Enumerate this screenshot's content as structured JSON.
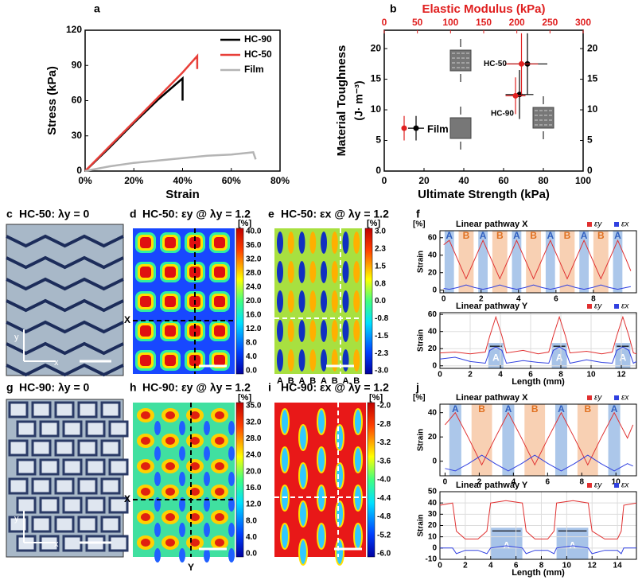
{
  "chart_data": [
    {
      "panel_label": "a",
      "type": "line",
      "xlabel": "Strain",
      "ylabel": "Stress (kPa)",
      "xlim": [
        0,
        80
      ],
      "xticks": [
        {
          "value": 0,
          "label": "0%"
        },
        {
          "value": 20,
          "label": "20%"
        },
        {
          "value": 40,
          "label": "40%"
        },
        {
          "value": 60,
          "label": "60%"
        },
        {
          "value": 80,
          "label": "80%"
        }
      ],
      "ylim": [
        0,
        120
      ],
      "yticks": [
        0,
        30,
        60,
        90,
        120
      ],
      "legend": "upper right",
      "series": [
        {
          "name": "HC-90",
          "color": "#000000",
          "x": [
            0,
            10,
            20,
            30,
            40,
            40
          ],
          "values": [
            0,
            20,
            41,
            61,
            79,
            60
          ]
        },
        {
          "name": "HC-50",
          "color": "#e8403a",
          "x": [
            0,
            10,
            20,
            30,
            40,
            46,
            46
          ],
          "values": [
            0,
            21,
            42,
            63,
            84,
            98,
            87
          ]
        },
        {
          "name": "Film",
          "color": "#b4b4b4",
          "x": [
            0,
            10,
            20,
            30,
            40,
            50,
            60,
            69,
            70
          ],
          "values": [
            0,
            4,
            7,
            9,
            11,
            13,
            14,
            16,
            10
          ]
        }
      ]
    },
    {
      "panel_label": "b",
      "type": "scatter",
      "xlabel": "Ultimate Strength (kPa)",
      "x2label": "Elastic Modulus (kPa)",
      "ylabel": "Material Toughness",
      "ylabel_unit": "(J· m⁻³)",
      "xlim": [
        0,
        100
      ],
      "xticks": [
        0,
        20,
        40,
        60,
        80,
        100
      ],
      "x2lim": [
        0,
        300
      ],
      "x2ticks": [
        0,
        50,
        100,
        150,
        200,
        250,
        300
      ],
      "ylim": [
        0,
        23
      ],
      "yticks": [
        0,
        5,
        10,
        15,
        20
      ],
      "y2lim": [
        0,
        23
      ],
      "y2ticks": [
        0,
        5,
        10,
        15,
        20
      ],
      "annotations": [
        "Film",
        "HC-90",
        "HC-50"
      ],
      "series": [
        {
          "color": "#000000",
          "x": [
            16,
            68,
            72
          ],
          "values": [
            7,
            12.5,
            17.5
          ],
          "xerr": [
            4,
            7,
            10
          ],
          "yerr": [
            2,
            4,
            5
          ]
        },
        {
          "color": "#e02020",
          "axis": "x2",
          "x": [
            30,
            198,
            207
          ],
          "values": [
            7,
            12.3,
            17.5
          ],
          "xerr": [
            0,
            15,
            25
          ],
          "yerr": [
            2,
            3,
            5
          ]
        }
      ]
    },
    {
      "panel_label": "f",
      "type": "line",
      "title": "Linear pathway X",
      "unit": "[%]",
      "ylabel": "Strain",
      "xlim": [
        -0.2,
        10.3
      ],
      "xticks": [
        0,
        2,
        4,
        6,
        8
      ],
      "ylim": [
        -3,
        68
      ],
      "yticks": [
        0,
        20,
        40,
        60
      ],
      "legend": "above",
      "x": [
        0,
        0.3,
        0.75,
        1.2,
        1.65,
        2.1,
        2.55,
        3.0,
        3.45,
        3.9,
        4.35,
        4.8,
        5.25,
        5.7,
        6.15,
        6.6,
        7.05,
        7.5,
        7.95,
        8.4,
        8.85,
        9.3,
        9.75,
        10
      ],
      "series": [
        {
          "name": "εy",
          "color": "#e03030",
          "values": [
            52,
            57,
            35,
            13,
            35,
            57,
            35,
            13,
            35,
            57,
            35,
            13,
            35,
            57,
            35,
            13,
            35,
            57,
            35,
            13,
            35,
            57,
            35,
            22
          ]
        },
        {
          "name": "εx",
          "color": "#3040e0",
          "values": [
            2,
            1,
            3,
            6,
            3,
            1,
            3,
            6,
            3,
            1,
            3,
            6,
            3,
            1,
            3,
            6,
            3,
            1,
            3,
            6,
            3,
            1,
            3,
            4
          ]
        }
      ],
      "bands": [
        {
          "label": "A",
          "x": [
            0.05,
            0.55
          ]
        },
        {
          "label": "B",
          "x": [
            0.8,
            1.6
          ]
        },
        {
          "label": "A",
          "x": [
            1.85,
            2.35
          ]
        },
        {
          "label": "B",
          "x": [
            2.6,
            3.4
          ]
        },
        {
          "label": "A",
          "x": [
            3.65,
            4.15
          ]
        },
        {
          "label": "B",
          "x": [
            4.4,
            5.2
          ]
        },
        {
          "label": "A",
          "x": [
            5.45,
            5.95
          ]
        },
        {
          "label": "B",
          "x": [
            6.2,
            7.0
          ]
        },
        {
          "label": "A",
          "x": [
            7.25,
            7.75
          ]
        },
        {
          "label": "B",
          "x": [
            8.0,
            8.8
          ]
        },
        {
          "label": "A",
          "x": [
            9.05,
            9.55
          ]
        }
      ]
    },
    {
      "type": "line",
      "title": "Linear pathway Y",
      "ylabel": "Strain",
      "xlabel": "Length (mm)",
      "grid": true,
      "xlim": [
        0,
        13
      ],
      "xticks": [
        0,
        2,
        4,
        6,
        8,
        10,
        12
      ],
      "ylim": [
        -3,
        62
      ],
      "yticks": [
        0,
        20,
        40,
        60
      ],
      "legend": "above",
      "x": [
        0,
        1,
        2,
        3,
        3.3,
        3.7,
        4.1,
        4.4,
        5.5,
        6.5,
        7.2,
        7.5,
        7.9,
        8.3,
        8.6,
        9.7,
        10.7,
        11.4,
        11.7,
        12.1,
        12.5,
        12.8,
        13
      ],
      "series": [
        {
          "name": "εy",
          "color": "#e03030",
          "values": [
            15,
            16,
            14,
            16,
            35,
            57,
            35,
            15,
            18,
            14,
            16,
            35,
            57,
            35,
            15,
            17,
            14,
            16,
            35,
            57,
            35,
            15,
            14
          ]
        },
        {
          "name": "εx",
          "color": "#3040e0",
          "values": [
            8,
            10,
            5,
            3,
            18,
            22,
            18,
            3,
            6,
            4,
            3,
            18,
            22,
            18,
            3,
            7,
            4,
            3,
            18,
            22,
            18,
            3,
            5
          ]
        }
      ],
      "bands": [
        {
          "label": "A",
          "x": [
            3.2,
            4.2
          ]
        },
        {
          "label": "A",
          "x": [
            7.4,
            8.4
          ]
        },
        {
          "label": "A",
          "x": [
            11.6,
            12.6
          ]
        }
      ]
    },
    {
      "panel_label": "j",
      "type": "line",
      "title": "Linear pathway X",
      "unit": "[%]",
      "ylabel": "Strain",
      "xlim": [
        -0.3,
        11.2
      ],
      "xticks": [
        0,
        2,
        4,
        6,
        8,
        10
      ],
      "ylim": [
        -12,
        47
      ],
      "yticks": [
        0,
        20,
        40
      ],
      "legend": "above",
      "x": [
        0,
        0.6,
        1.375,
        2.15,
        2.925,
        3.7,
        4.475,
        5.25,
        6.025,
        6.8,
        7.575,
        8.35,
        9.125,
        9.9,
        10.675,
        11
      ],
      "series": [
        {
          "name": "εy",
          "color": "#e03030",
          "values": [
            30,
            40,
            19,
            -3,
            19,
            40,
            19,
            -3,
            19,
            40,
            19,
            -3,
            19,
            40,
            19,
            30
          ]
        },
        {
          "name": "εx",
          "color": "#3040e0",
          "values": [
            -6,
            -8,
            -2,
            5,
            -2,
            -8,
            -2,
            5,
            -2,
            -8,
            -2,
            5,
            -2,
            -8,
            -2,
            -4
          ]
        }
      ],
      "bands": [
        {
          "label": "A",
          "x": [
            0.25,
            0.95
          ]
        },
        {
          "label": "B",
          "x": [
            1.55,
            2.75
          ]
        },
        {
          "label": "A",
          "x": [
            3.35,
            4.05
          ]
        },
        {
          "label": "B",
          "x": [
            4.65,
            5.85
          ]
        },
        {
          "label": "A",
          "x": [
            6.45,
            7.15
          ]
        },
        {
          "label": "B",
          "x": [
            7.75,
            8.95
          ]
        },
        {
          "label": "A",
          "x": [
            9.55,
            10.25
          ]
        }
      ]
    },
    {
      "type": "line",
      "title": "Linear pathway Y",
      "ylabel": "Strain",
      "xlabel": "Length (mm)",
      "grid": true,
      "xlim": [
        0,
        15.5
      ],
      "xticks": [
        0,
        2,
        4,
        6,
        8,
        10,
        12,
        14
      ],
      "ylim": [
        -10,
        50
      ],
      "yticks": [
        -10,
        0,
        10,
        20,
        30,
        40,
        50
      ],
      "legend": "above",
      "x": [
        0,
        1,
        1.3,
        2,
        3,
        3.7,
        4.0,
        5.2,
        6.5,
        6.8,
        7.5,
        8.5,
        9.0,
        9.2,
        10.5,
        11.7,
        12.0,
        13,
        14,
        14.3,
        14.5,
        15.5
      ],
      "series": [
        {
          "name": "εy",
          "color": "#e03030",
          "values": [
            38,
            40,
            15,
            8,
            8,
            15,
            40,
            42,
            40,
            15,
            8,
            8,
            15,
            40,
            42,
            40,
            15,
            8,
            8,
            15,
            38,
            40
          ]
        },
        {
          "name": "εx",
          "color": "#3040e0",
          "values": [
            0,
            0,
            -5,
            -2,
            -2,
            -5,
            0,
            2,
            0,
            -5,
            -2,
            -2,
            -5,
            0,
            2,
            0,
            -5,
            -2,
            -2,
            -5,
            0,
            0
          ]
        }
      ],
      "bands": [
        {
          "label": "A",
          "x": [
            4.0,
            6.5
          ]
        },
        {
          "label": "A",
          "x": [
            9.2,
            11.7
          ]
        }
      ]
    }
  ],
  "panels": {
    "c": {
      "label": "c",
      "title": "HC-50: λy = 0",
      "axis_y": "y",
      "axis_x": "x"
    },
    "d": {
      "label": "d",
      "title": "HC-50: εy @ λy = 1.2",
      "unit": "[%]",
      "colorbar": [
        "40.0",
        "36.0",
        "32.0",
        "28.0",
        "24.0",
        "20.0",
        "16.0",
        "12.0",
        "8.0",
        "4.0",
        "0.0"
      ],
      "x_marker": "X"
    },
    "e": {
      "label": "e",
      "title": "HC-50: εx @ λy = 1.2",
      "unit": "[%]",
      "colorbar": [
        "3.0",
        "2.3",
        "1.5",
        "0.8",
        "0.0",
        "-0.8",
        "-1.5",
        "-2.3",
        "-3.0"
      ],
      "bottom_labels": [
        "A",
        "B",
        "A",
        "B",
        "A",
        "B",
        "A",
        "B"
      ]
    },
    "g": {
      "label": "g",
      "title": "HC-90: λy = 0",
      "axis_y": "y",
      "axis_x": "x"
    },
    "h": {
      "label": "h",
      "title": "HC-90: εy @ λy = 1.2",
      "unit": "[%]",
      "colorbar": [
        "35.0",
        "32.0",
        "28.0",
        "24.0",
        "20.0",
        "16.0",
        "12.0",
        "8.0",
        "4.0",
        "0.0"
      ],
      "x_marker": "X",
      "y_marker": "Y"
    },
    "i": {
      "label": "i",
      "title": "HC-90: εx @ λy = 1.2",
      "unit": "[%]",
      "colorbar": [
        "-2.0",
        "-2.8",
        "-3.2",
        "-3.6",
        "-4.0",
        "-4.4",
        "-4.8",
        "-5.2",
        "-6.0"
      ]
    }
  }
}
